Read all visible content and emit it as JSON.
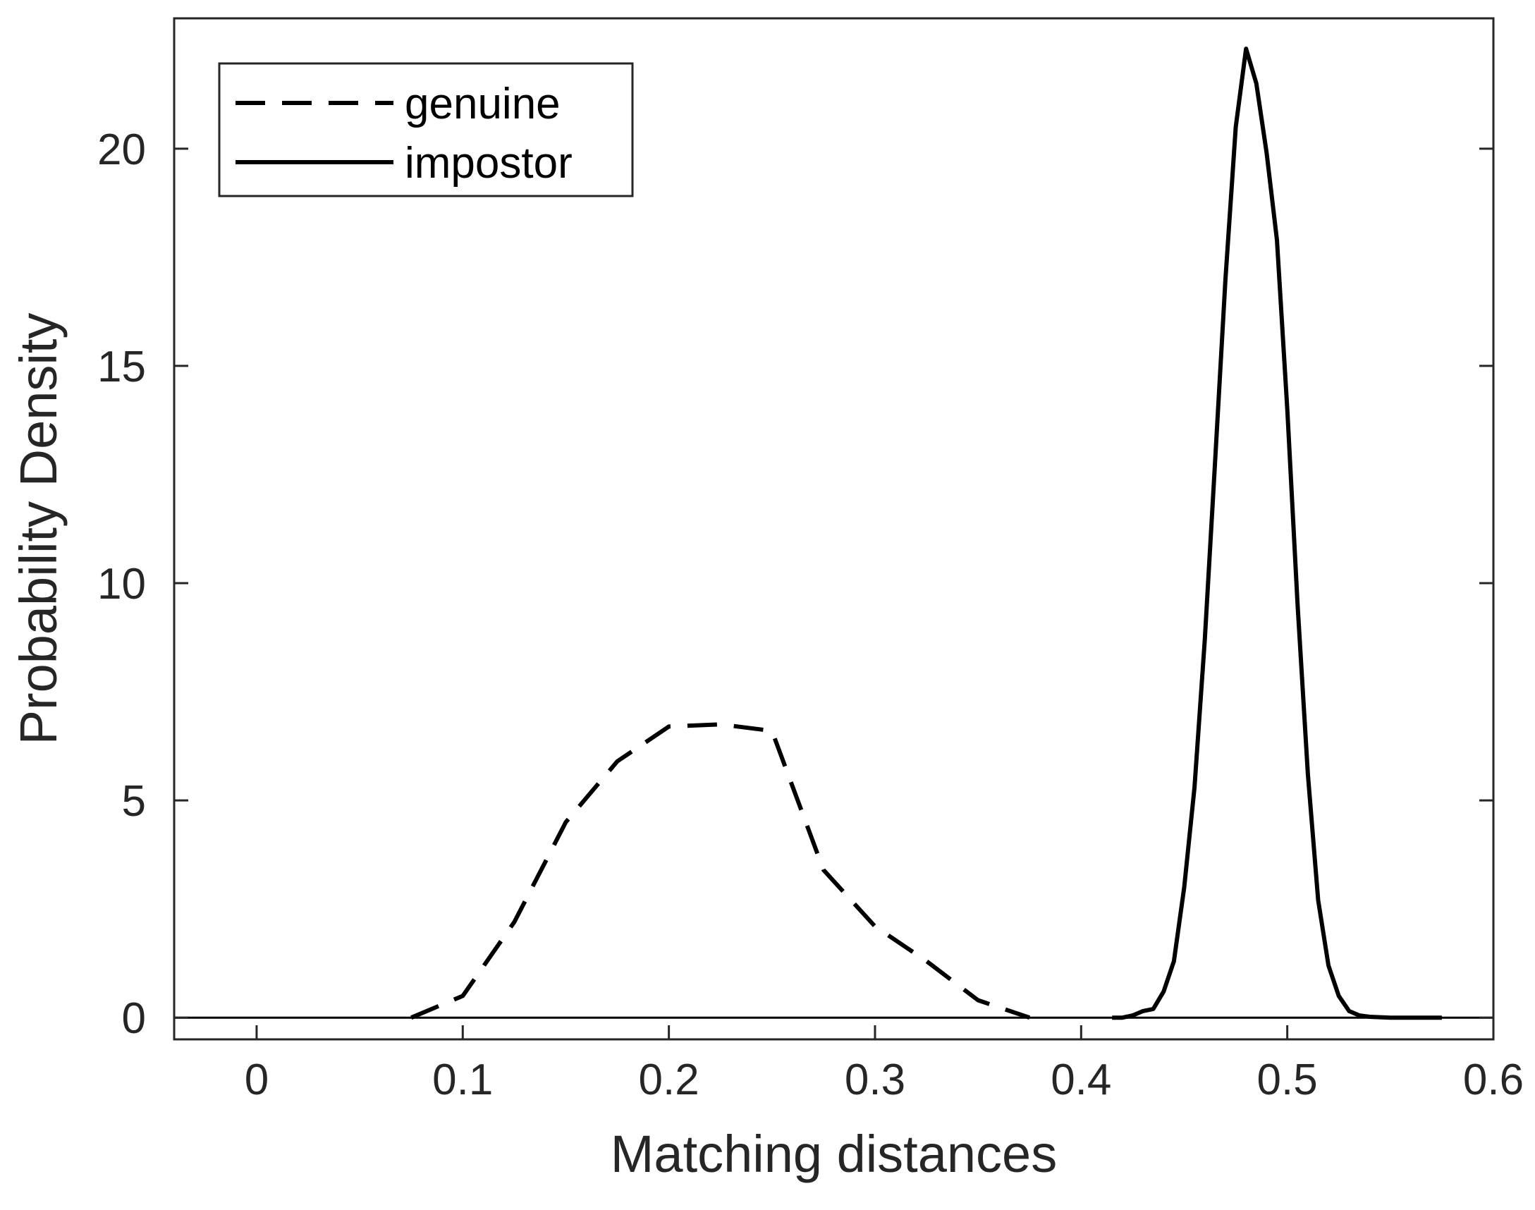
{
  "chart_data": {
    "type": "line",
    "title": "",
    "xlabel": "Matching distances",
    "ylabel": "Probability Density",
    "xlim": [
      -0.04,
      0.6
    ],
    "ylim": [
      -0.5,
      23
    ],
    "xticks": [
      0,
      0.1,
      0.2,
      0.3,
      0.4,
      0.5,
      0.6
    ],
    "xtick_labels": [
      "0",
      "0.1",
      "0.2",
      "0.3",
      "0.4",
      "0.5",
      "0.6"
    ],
    "yticks": [
      0,
      5,
      10,
      15,
      20
    ],
    "ytick_labels": [
      "0",
      "5",
      "10",
      "15",
      "20"
    ],
    "grid": false,
    "legend_position": "top-left",
    "baseline_y": 0,
    "series": [
      {
        "name": "genuine",
        "style": "dashed",
        "color": "#000000",
        "x": [
          0.075,
          0.1,
          0.125,
          0.15,
          0.175,
          0.2,
          0.225,
          0.25,
          0.275,
          0.3,
          0.325,
          0.35,
          0.375
        ],
        "y": [
          0.0,
          0.5,
          2.2,
          4.5,
          5.9,
          6.7,
          6.75,
          6.6,
          3.4,
          2.1,
          1.3,
          0.4,
          0.0
        ]
      },
      {
        "name": "impostor",
        "style": "solid",
        "color": "#000000",
        "x": [
          0.415,
          0.42,
          0.425,
          0.43,
          0.435,
          0.44,
          0.445,
          0.45,
          0.455,
          0.46,
          0.465,
          0.47,
          0.475,
          0.48,
          0.485,
          0.49,
          0.495,
          0.5,
          0.505,
          0.51,
          0.515,
          0.52,
          0.525,
          0.53,
          0.535,
          0.54,
          0.545,
          0.55,
          0.555,
          0.56,
          0.565,
          0.57,
          0.575
        ],
        "y": [
          0.0,
          0.0,
          0.05,
          0.15,
          0.2,
          0.6,
          1.3,
          3.0,
          5.3,
          8.7,
          12.8,
          17.0,
          20.5,
          22.3,
          21.5,
          19.9,
          17.9,
          14.0,
          9.5,
          5.6,
          2.7,
          1.2,
          0.5,
          0.15,
          0.05,
          0.02,
          0.01,
          0.0,
          0.0,
          0.0,
          0.0,
          0.0,
          0.0
        ]
      }
    ]
  }
}
